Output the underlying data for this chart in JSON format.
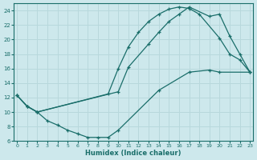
{
  "bg_color": "#cde8ec",
  "grid_color": "#b8d8dc",
  "line_color": "#1a6e6a",
  "line1": {
    "x": [
      0,
      1,
      2,
      10,
      11,
      13,
      14,
      15,
      16,
      17,
      19,
      20,
      21,
      22,
      23
    ],
    "y": [
      12.3,
      10.8,
      10.0,
      12.8,
      16.2,
      19.4,
      21.0,
      22.5,
      23.5,
      24.5,
      23.2,
      23.5,
      20.5,
      18.0,
      15.5
    ]
  },
  "line2": {
    "x": [
      0,
      1,
      2,
      9,
      10,
      11,
      12,
      13,
      14,
      15,
      16,
      17,
      18,
      20,
      21,
      22,
      23
    ],
    "y": [
      12.3,
      10.8,
      10.0,
      12.5,
      16.0,
      19.0,
      21.0,
      22.5,
      23.5,
      24.2,
      24.5,
      24.3,
      23.5,
      20.2,
      18.0,
      17.2,
      15.5
    ]
  },
  "line3": {
    "x": [
      0,
      1,
      2,
      3,
      4,
      5,
      6,
      7,
      8,
      9,
      10,
      14,
      17,
      19,
      20,
      23
    ],
    "y": [
      12.3,
      10.8,
      10.0,
      8.8,
      8.2,
      7.5,
      7.0,
      6.5,
      6.5,
      6.5,
      7.5,
      13.0,
      15.5,
      15.8,
      15.5,
      15.5
    ]
  },
  "xlabel": "Humidex (Indice chaleur)",
  "xlim": [
    -0.3,
    23.3
  ],
  "ylim": [
    6,
    25
  ],
  "yticks": [
    6,
    8,
    10,
    12,
    14,
    16,
    18,
    20,
    22,
    24
  ],
  "xticks": [
    0,
    1,
    2,
    3,
    4,
    5,
    6,
    7,
    8,
    9,
    10,
    11,
    12,
    13,
    14,
    15,
    16,
    17,
    18,
    19,
    20,
    21,
    22,
    23
  ]
}
